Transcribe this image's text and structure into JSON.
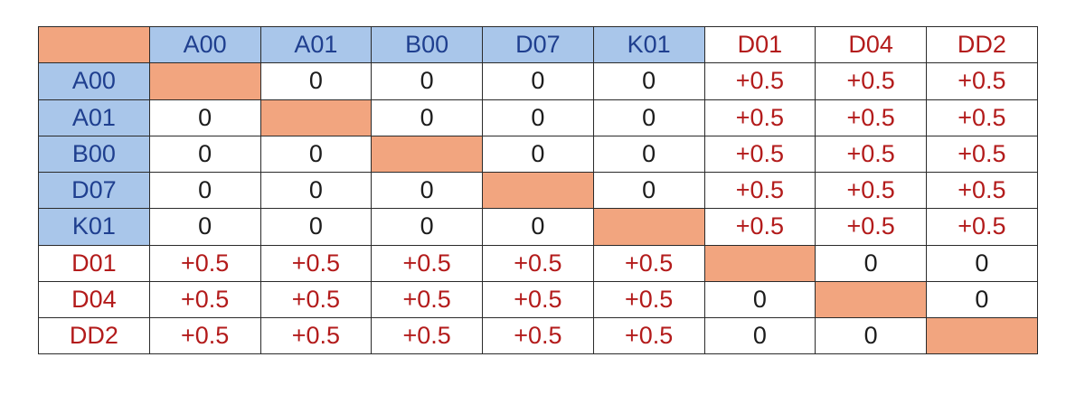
{
  "matrix": {
    "column_headers": [
      {
        "label": "A00",
        "group": "blue"
      },
      {
        "label": "A01",
        "group": "blue"
      },
      {
        "label": "B00",
        "group": "blue"
      },
      {
        "label": "D07",
        "group": "blue"
      },
      {
        "label": "K01",
        "group": "blue"
      },
      {
        "label": "D01",
        "group": "red"
      },
      {
        "label": "D04",
        "group": "red"
      },
      {
        "label": "DD2",
        "group": "red"
      }
    ],
    "rows": [
      {
        "label": "A00",
        "group": "blue",
        "cells": [
          null,
          "0",
          "0",
          "0",
          "0",
          "+0.5",
          "+0.5",
          "+0.5"
        ]
      },
      {
        "label": "A01",
        "group": "blue",
        "cells": [
          "0",
          null,
          "0",
          "0",
          "0",
          "+0.5",
          "+0.5",
          "+0.5"
        ]
      },
      {
        "label": "B00",
        "group": "blue",
        "cells": [
          "0",
          "0",
          null,
          "0",
          "0",
          "+0.5",
          "+0.5",
          "+0.5"
        ]
      },
      {
        "label": "D07",
        "group": "blue",
        "cells": [
          "0",
          "0",
          "0",
          null,
          "0",
          "+0.5",
          "+0.5",
          "+0.5"
        ]
      },
      {
        "label": "K01",
        "group": "blue",
        "cells": [
          "0",
          "0",
          "0",
          "0",
          null,
          "+0.5",
          "+0.5",
          "+0.5"
        ]
      },
      {
        "label": "D01",
        "group": "red",
        "cells": [
          "+0.5",
          "+0.5",
          "+0.5",
          "+0.5",
          "+0.5",
          null,
          "0",
          "0"
        ]
      },
      {
        "label": "D04",
        "group": "red",
        "cells": [
          "+0.5",
          "+0.5",
          "+0.5",
          "+0.5",
          "+0.5",
          "0",
          null,
          "0"
        ]
      },
      {
        "label": "DD2",
        "group": "red",
        "cells": [
          "+0.5",
          "+0.5",
          "+0.5",
          "+0.5",
          "+0.5",
          "0",
          "0",
          null
        ]
      }
    ]
  },
  "colors": {
    "corner_fill": "#f2a57f",
    "diagonal_fill": "#f2a57f",
    "blue_header_fill": "#a9c6ea",
    "blue_header_text": "#1f3f8f",
    "red_header_text": "#b31b1b",
    "positive_value_text": "#b31b1b",
    "zero_value_text": "#1c1c1c"
  }
}
